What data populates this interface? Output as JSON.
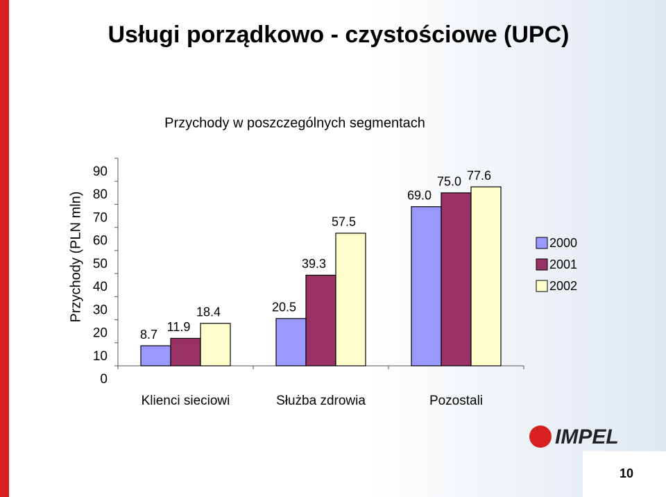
{
  "chart_data": {
    "type": "bar",
    "title": "Usługi porządkowo - czystościowe (UPC)",
    "subtitle": "Przychody w poszczególnych segmentach",
    "y_label": "Przychody (PLN mln)",
    "categories": [
      "Klienci sieciowi",
      "Służba zdrowia",
      "Pozostali"
    ],
    "series": [
      {
        "name": "2000",
        "color": "#9999ff",
        "values": [
          8.7,
          20.5,
          69.0
        ],
        "value_labels": [
          "8.7",
          "20.5",
          "69.0"
        ]
      },
      {
        "name": "2001",
        "color": "#993366",
        "values": [
          11.9,
          39.3,
          75.0
        ],
        "value_labels": [
          "11.9",
          "39.3",
          "75.0"
        ]
      },
      {
        "name": "2002",
        "color": "#ffffcc",
        "values": [
          18.4,
          57.5,
          77.6
        ],
        "value_labels": [
          "18.4",
          "57.5",
          "77.6"
        ]
      }
    ],
    "ylim": [
      0,
      90
    ],
    "yticks": [
      0,
      10,
      20,
      30,
      40,
      50,
      60,
      70,
      80,
      90
    ],
    "legend": "right"
  },
  "footer": {
    "logo": "IMPEL",
    "page_number": "10"
  }
}
